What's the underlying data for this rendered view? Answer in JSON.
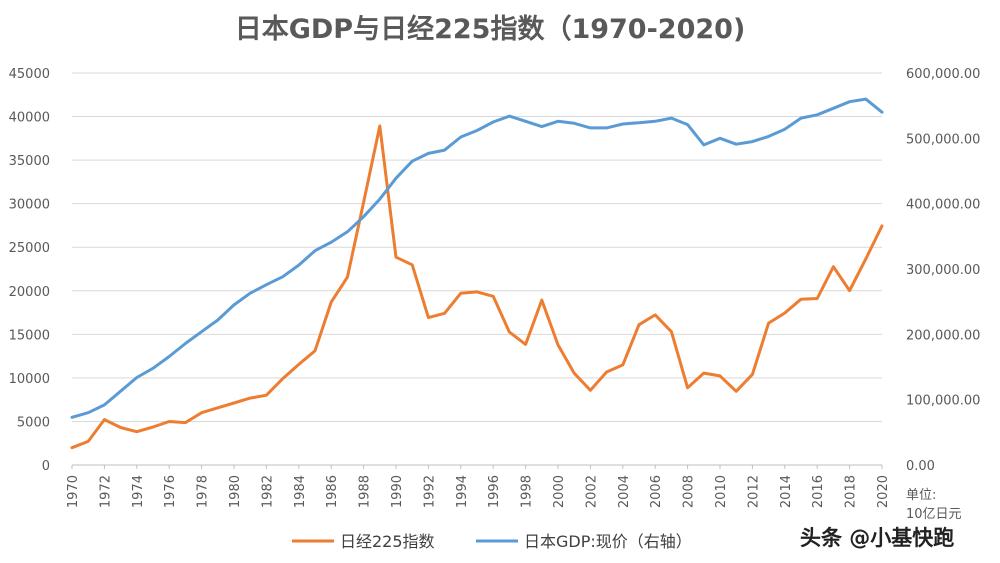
{
  "chart_data": {
    "type": "line",
    "title": "日本GDP与日经225指数（1970-2020)",
    "x": [
      1970,
      1971,
      1972,
      1973,
      1974,
      1975,
      1976,
      1977,
      1978,
      1979,
      1980,
      1981,
      1982,
      1983,
      1984,
      1985,
      1986,
      1987,
      1988,
      1989,
      1990,
      1991,
      1992,
      1993,
      1994,
      1995,
      1996,
      1997,
      1998,
      1999,
      2000,
      2001,
      2002,
      2003,
      2004,
      2005,
      2006,
      2007,
      2008,
      2009,
      2010,
      2011,
      2012,
      2013,
      2014,
      2015,
      2016,
      2017,
      2018,
      2019,
      2020
    ],
    "x_tick_labels": [
      "1970",
      "1972",
      "1974",
      "1976",
      "1978",
      "1980",
      "1982",
      "1984",
      "1986",
      "1988",
      "1990",
      "1992",
      "1994",
      "1996",
      "1998",
      "2000",
      "2002",
      "2004",
      "2006",
      "2008",
      "2010",
      "2012",
      "2014",
      "2016",
      "2018",
      "2020"
    ],
    "y_left_ticks": [
      "0",
      "5000",
      "10000",
      "15000",
      "20000",
      "25000",
      "30000",
      "35000",
      "40000",
      "45000"
    ],
    "y_left_range": [
      0,
      45000
    ],
    "y_right_ticks": [
      "0.00",
      "100,000.00",
      "200,000.00",
      "300,000.00",
      "400,000.00",
      "500,000.00",
      "600,000.00"
    ],
    "y_right_range": [
      0,
      600000
    ],
    "series": [
      {
        "name": "日经225指数",
        "axis": "left",
        "color": "#ED7D31",
        "values": [
          1987,
          2714,
          5208,
          4306,
          3817,
          4359,
          4991,
          4866,
          6002,
          6570,
          7116,
          7682,
          8017,
          9894,
          11543,
          13113,
          18701,
          21564,
          30159,
          38916,
          23849,
          22984,
          16925,
          17417,
          19723,
          19868,
          19361,
          15259,
          13842,
          18934,
          13786,
          10543,
          8579,
          10677,
          11489,
          16111,
          17226,
          15308,
          8860,
          10546,
          10229,
          8455,
          10395,
          16291,
          17451,
          19034,
          19114,
          22765,
          20015,
          23657,
          27444
        ]
      },
      {
        "name": "日本GDP:现价（右轴）",
        "axis": "right",
        "color": "#5B9BD5",
        "values": [
          73000,
          80000,
          92000,
          113000,
          134000,
          148000,
          166000,
          186000,
          204000,
          222000,
          245000,
          263000,
          276000,
          288000,
          306000,
          328000,
          341000,
          357000,
          380000,
          407000,
          439000,
          465000,
          477000,
          482000,
          502000,
          512000,
          525000,
          534000,
          526000,
          518000,
          526000,
          523000,
          516000,
          516000,
          522000,
          524000,
          526000,
          531000,
          521000,
          490000,
          500000,
          491000,
          495000,
          503000,
          514000,
          531000,
          536000,
          546000,
          556000,
          560000,
          540000
        ]
      }
    ]
  },
  "legend": {
    "series_a": "日经225指数",
    "series_b": "日本GDP:现价（右轴）"
  },
  "unit": {
    "line1": "单位:",
    "line2": "10亿日元"
  },
  "watermark": "头条 @小基快跑",
  "colors": {
    "grid": "#D9D9D9",
    "axis": "#BFBFBF",
    "text": "#595959"
  }
}
